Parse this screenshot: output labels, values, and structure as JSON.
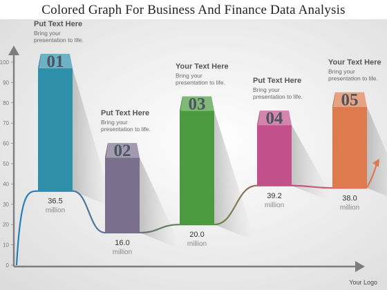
{
  "title": "Colored Graph For Business And Finance Data Analysis",
  "footer": "Your Logo",
  "chart_data": {
    "type": "bar",
    "categories": [
      "01",
      "02",
      "03",
      "04",
      "05"
    ],
    "values": [
      36.5,
      16.0,
      20.0,
      39.2,
      38.0
    ],
    "value_labels": [
      "36.5",
      "16.0",
      "20.0",
      "39.2",
      "38.0"
    ],
    "unit_label": "million",
    "bar_tops": [
      97,
      53,
      76,
      69,
      78
    ],
    "ylim": [
      0,
      100
    ],
    "yticks": [
      0,
      10,
      20,
      30,
      40,
      50,
      60,
      70,
      80,
      90,
      100
    ],
    "colors": [
      "#2e8faa",
      "#7a6f8d",
      "#4b9a3f",
      "#c2508a",
      "#dd7a4e"
    ],
    "annotations": [
      {
        "heading": "Put Text Here",
        "text": [
          "Bring your",
          "presentation to life."
        ]
      },
      {
        "heading": "Put Text Here",
        "text": [
          "Bring your",
          "presentation to life."
        ]
      },
      {
        "heading": "Your Text Here",
        "text": [
          "Bring your",
          "presentation to life."
        ]
      },
      {
        "heading": "Put Text Here",
        "text": [
          "Bring your",
          "presentation to life."
        ]
      },
      {
        "heading": "Your Text Here",
        "text": [
          "Bring your",
          "presentation to life."
        ]
      }
    ]
  }
}
